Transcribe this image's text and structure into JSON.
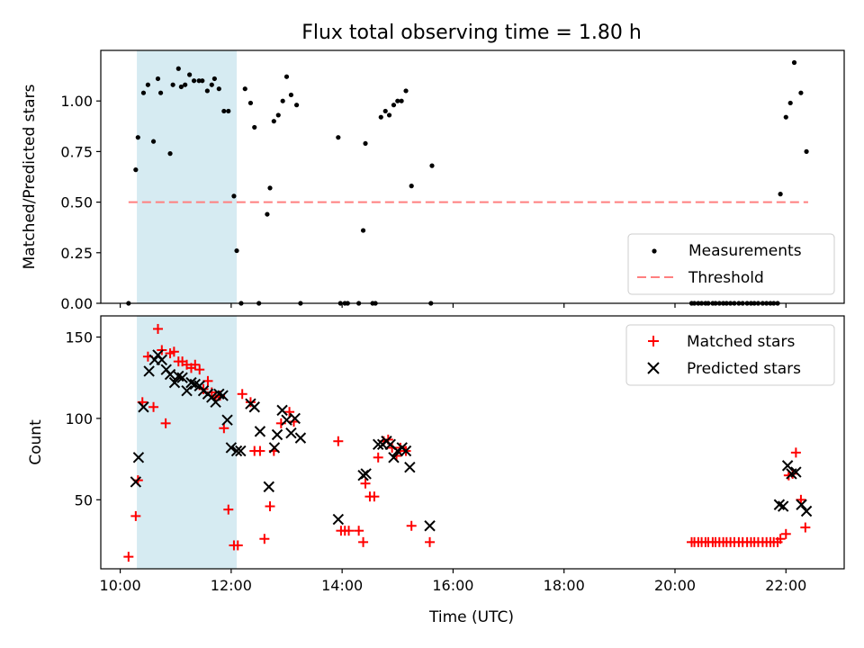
{
  "chart_data": [
    {
      "type": "scatter",
      "title": "Flux total observing time = 1.80 h",
      "xlabel": "",
      "ylabel": "Matched/Predicted stars",
      "xlim": [
        9.65,
        23.05
      ],
      "ylim": [
        0.0,
        1.25
      ],
      "yticks": [
        0.0,
        0.25,
        0.5,
        0.75,
        1.0
      ],
      "ytick_labels": [
        "0.00",
        "0.25",
        "0.50",
        "0.75",
        "1.00"
      ],
      "xticks": [
        10,
        12,
        14,
        16,
        18,
        20,
        22
      ],
      "xtick_labels_shown": false,
      "highlight_span": {
        "x0": 10.3,
        "x1": 12.1,
        "color": "#add8e6"
      },
      "legend_position": "lower right",
      "series": [
        {
          "name": "Measurements",
          "marker": "dot",
          "color": "#000000",
          "x": [
            10.15,
            10.28,
            10.32,
            10.42,
            10.5,
            10.6,
            10.68,
            10.73,
            10.9,
            10.95,
            11.05,
            11.1,
            11.17,
            11.25,
            11.33,
            11.42,
            11.48,
            11.57,
            11.65,
            11.7,
            11.78,
            11.87,
            11.95,
            12.05,
            12.1,
            12.18,
            12.25,
            12.35,
            12.42,
            12.5,
            12.65,
            12.7,
            12.77,
            12.85,
            12.93,
            13.0,
            13.08,
            13.18,
            13.25,
            13.93,
            13.97,
            14.05,
            14.1,
            14.3,
            14.38,
            14.42,
            14.55,
            14.6,
            14.7,
            14.78,
            14.85,
            14.93,
            15.0,
            15.07,
            15.15,
            15.25,
            15.6,
            15.62,
            20.3,
            20.35,
            20.42,
            20.48,
            20.55,
            20.6,
            20.68,
            20.73,
            20.8,
            20.87,
            20.93,
            21.0,
            21.07,
            21.15,
            21.22,
            21.3,
            21.37,
            21.43,
            21.5,
            21.58,
            21.65,
            21.72,
            21.78,
            21.85,
            21.9,
            22.0,
            22.08,
            22.15,
            22.27,
            22.37
          ],
          "y": [
            0.0,
            0.66,
            0.82,
            1.04,
            1.08,
            0.8,
            1.11,
            1.04,
            0.74,
            1.08,
            1.16,
            1.07,
            1.08,
            1.13,
            1.1,
            1.1,
            1.1,
            1.05,
            1.08,
            1.11,
            1.06,
            0.95,
            0.95,
            0.53,
            0.26,
            0.0,
            1.06,
            0.99,
            0.87,
            0.0,
            0.44,
            0.57,
            0.9,
            0.93,
            1.0,
            1.12,
            1.03,
            0.98,
            0.0,
            0.82,
            0.0,
            0.0,
            0.0,
            0.0,
            0.36,
            0.79,
            0.0,
            0.0,
            0.92,
            0.95,
            0.93,
            0.98,
            1.0,
            1.0,
            1.05,
            0.58,
            0.0,
            0.68,
            0.0,
            0.0,
            0.0,
            0.0,
            0.0,
            0.0,
            0.0,
            0.0,
            0.0,
            0.0,
            0.0,
            0.0,
            0.0,
            0.0,
            0.0,
            0.0,
            0.0,
            0.0,
            0.0,
            0.0,
            0.0,
            0.0,
            0.0,
            0.0,
            0.54,
            0.92,
            0.99,
            1.19,
            1.04,
            0.75
          ]
        },
        {
          "name": "Threshold",
          "marker": "dashed-line",
          "color": "#ff7f7f",
          "x": [
            10.15,
            22.4
          ],
          "y": [
            0.5,
            0.5
          ]
        }
      ]
    },
    {
      "type": "scatter",
      "title": "",
      "xlabel": "Time (UTC)",
      "ylabel": "Count",
      "xlim": [
        9.65,
        23.05
      ],
      "ylim": [
        7.6,
        163
      ],
      "yticks": [
        50,
        100,
        150
      ],
      "ytick_labels": [
        "50",
        "100",
        "150"
      ],
      "xticks": [
        10,
        12,
        14,
        16,
        18,
        20,
        22
      ],
      "xtick_labels": [
        "10:00",
        "12:00",
        "14:00",
        "16:00",
        "18:00",
        "20:00",
        "22:00"
      ],
      "highlight_span": {
        "x0": 10.3,
        "x1": 12.1,
        "color": "#add8e6"
      },
      "legend_position": "upper right",
      "series": [
        {
          "name": "Matched stars",
          "marker": "plus",
          "color": "#ff0000",
          "x": [
            10.15,
            10.28,
            10.32,
            10.4,
            10.5,
            10.6,
            10.68,
            10.75,
            10.82,
            10.9,
            10.97,
            11.05,
            11.12,
            11.2,
            11.28,
            11.35,
            11.43,
            11.5,
            11.58,
            11.65,
            11.72,
            11.8,
            11.87,
            11.95,
            12.05,
            12.12,
            12.2,
            12.35,
            12.42,
            12.52,
            12.6,
            12.7,
            12.77,
            12.9,
            13.05,
            13.13,
            13.93,
            13.98,
            14.05,
            14.12,
            14.3,
            14.38,
            14.42,
            14.5,
            14.58,
            14.65,
            14.75,
            14.83,
            14.9,
            14.98,
            15.05,
            15.15,
            15.25,
            15.58,
            20.3,
            20.35,
            20.42,
            20.48,
            20.55,
            20.6,
            20.68,
            20.73,
            20.8,
            20.87,
            20.93,
            21.0,
            21.07,
            21.15,
            21.22,
            21.3,
            21.37,
            21.43,
            21.5,
            21.58,
            21.65,
            21.72,
            21.78,
            21.85,
            21.9,
            22.0,
            22.05,
            22.12,
            22.18,
            22.27,
            22.35
          ],
          "y": [
            15,
            40,
            62,
            110,
            138,
            107,
            155,
            142,
            97,
            140,
            141,
            135,
            135,
            133,
            131,
            133,
            130,
            118,
            123,
            116,
            113,
            114,
            94,
            44,
            22,
            22,
            115,
            110,
            80,
            80,
            26,
            46,
            80,
            97,
            104,
            98,
            86,
            31,
            31,
            31,
            31,
            24,
            60,
            52,
            52,
            76,
            86,
            87,
            82,
            77,
            82,
            80,
            34,
            24,
            24,
            24,
            24,
            24,
            24,
            24,
            24,
            24,
            24,
            24,
            24,
            24,
            24,
            24,
            24,
            24,
            24,
            24,
            24,
            24,
            24,
            24,
            24,
            24,
            26,
            29,
            65,
            66,
            79,
            50,
            33
          ]
        },
        {
          "name": "Predicted stars",
          "marker": "x",
          "color": "#000000",
          "x": [
            10.28,
            10.33,
            10.42,
            10.52,
            10.62,
            10.68,
            10.75,
            10.83,
            10.9,
            10.98,
            11.05,
            11.12,
            11.2,
            11.28,
            11.35,
            11.43,
            11.5,
            11.58,
            11.65,
            11.72,
            11.78,
            11.85,
            11.93,
            12.0,
            12.1,
            12.17,
            12.35,
            12.42,
            12.52,
            12.68,
            12.78,
            12.83,
            12.92,
            13.0,
            13.08,
            13.15,
            13.25,
            13.93,
            14.38,
            14.43,
            14.65,
            14.73,
            14.8,
            14.87,
            14.93,
            15.0,
            15.08,
            15.15,
            15.22,
            15.58,
            21.88,
            21.95,
            22.03,
            22.1,
            22.18,
            22.28,
            22.37
          ],
          "y": [
            61,
            76,
            107,
            129,
            136,
            139,
            136,
            130,
            127,
            122,
            126,
            125,
            117,
            122,
            121,
            120,
            117,
            115,
            113,
            110,
            115,
            114,
            99,
            82,
            80,
            80,
            109,
            107,
            92,
            58,
            82,
            90,
            105,
            99,
            91,
            100,
            88,
            38,
            65,
            66,
            84,
            84,
            86,
            84,
            76,
            80,
            82,
            80,
            70,
            34,
            47,
            46,
            71,
            66,
            67,
            47,
            43
          ]
        }
      ]
    }
  ]
}
